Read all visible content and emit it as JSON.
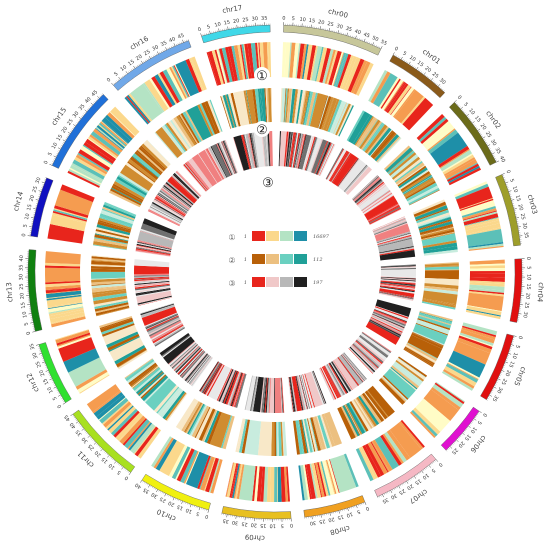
{
  "chromosomes": [
    {
      "name": "chr00",
      "length": 55,
      "color": "#c7c79a",
      "ticks": [
        0,
        5,
        10,
        15,
        20,
        25,
        30,
        35,
        40,
        45,
        50,
        55
      ]
    },
    {
      "name": "chr01",
      "length": 35,
      "color": "#8a5a1a",
      "ticks": [
        0,
        5,
        10,
        15,
        20,
        25,
        30
      ]
    },
    {
      "name": "chr02",
      "length": 40,
      "color": "#6b6b1a",
      "ticks": [
        0,
        5,
        10,
        15,
        20,
        25,
        30,
        35,
        40
      ]
    },
    {
      "name": "chr03",
      "length": 40,
      "color": "#9e9e2a",
      "ticks": [
        0,
        5,
        10,
        15,
        20,
        25,
        30,
        35
      ]
    },
    {
      "name": "chr04",
      "length": 35,
      "color": "#e01010",
      "ticks": [
        0,
        5,
        10,
        15,
        20,
        25,
        30
      ]
    },
    {
      "name": "chr05",
      "length": 38,
      "color": "#e01010",
      "ticks": [
        0,
        5,
        10,
        15,
        20,
        25,
        30,
        35
      ]
    },
    {
      "name": "chr06",
      "length": 28,
      "color": "#e010d0",
      "ticks": [
        0,
        5,
        10,
        15,
        20,
        25
      ]
    },
    {
      "name": "chr07",
      "length": 38,
      "color": "#f5b8c4",
      "ticks": [
        0,
        5,
        10,
        15,
        20,
        25,
        30,
        35
      ]
    },
    {
      "name": "chr08",
      "length": 34,
      "color": "#f0a020",
      "ticks": [
        0,
        5,
        10,
        15,
        20,
        25,
        30
      ]
    },
    {
      "name": "chr09",
      "length": 38,
      "color": "#e8c020",
      "ticks": [
        0,
        5,
        10,
        15,
        20,
        25,
        30,
        35
      ]
    },
    {
      "name": "chr10",
      "length": 40,
      "color": "#f0f010",
      "ticks": [
        0,
        5,
        10,
        15,
        20,
        25,
        30,
        35,
        40
      ]
    },
    {
      "name": "chr11",
      "length": 45,
      "color": "#a8e020",
      "ticks": [
        0,
        5,
        10,
        15,
        20,
        25,
        30,
        35,
        40,
        45
      ]
    },
    {
      "name": "chr12",
      "length": 35,
      "color": "#30e030",
      "ticks": [
        0,
        5,
        10,
        15,
        20,
        25,
        30,
        35
      ]
    },
    {
      "name": "chr13",
      "length": 45,
      "color": "#108010",
      "ticks": [
        0,
        5,
        10,
        15,
        20,
        25,
        30,
        35,
        40
      ]
    },
    {
      "name": "chr14",
      "length": 33,
      "color": "#1010c0",
      "ticks": [
        0,
        5,
        10,
        15,
        20,
        25,
        30
      ]
    },
    {
      "name": "chr15",
      "length": 48,
      "color": "#2070d8",
      "ticks": [
        0,
        5,
        10,
        15,
        20,
        25,
        30,
        35,
        40,
        45
      ]
    },
    {
      "name": "chr16",
      "length": 48,
      "color": "#70a8e8",
      "ticks": [
        0,
        5,
        10,
        15,
        20,
        25,
        30,
        35,
        40,
        45
      ]
    },
    {
      "name": "chr17",
      "length": 38,
      "color": "#40d8e8",
      "ticks": [
        0,
        5,
        10,
        15,
        20,
        25,
        30,
        35
      ]
    }
  ],
  "rings": [
    {
      "marker": "①",
      "palette": [
        "#e8251c",
        "#f59c50",
        "#fbd88c",
        "#fffcc6",
        "#b4e3c4",
        "#5cc0b8",
        "#1e8fa8"
      ]
    },
    {
      "marker": "②",
      "palette": [
        "#b86008",
        "#d08c30",
        "#ecc080",
        "#f8e8c8",
        "#c8ecde",
        "#6ad0c0",
        "#20a098"
      ]
    },
    {
      "marker": "③",
      "palette": [
        "#e8251c",
        "#f08080",
        "#f0c8c8",
        "#e8e8e8",
        "#b8b8b8",
        "#707070",
        "#202020"
      ]
    }
  ],
  "legend": [
    {
      "marker": "①",
      "min": "1",
      "max": "16697",
      "colors": [
        "#e8251c",
        "#fbd88c",
        "#b4e3c4",
        "#1e8fa8"
      ]
    },
    {
      "marker": "②",
      "min": "1",
      "max": "112",
      "colors": [
        "#b86008",
        "#ecc080",
        "#6ad0c0",
        "#20a098"
      ]
    },
    {
      "marker": "③",
      "min": "1",
      "max": "197",
      "colors": [
        "#e8251c",
        "#f0c8c8",
        "#b8b8b8",
        "#202020"
      ]
    }
  ]
}
